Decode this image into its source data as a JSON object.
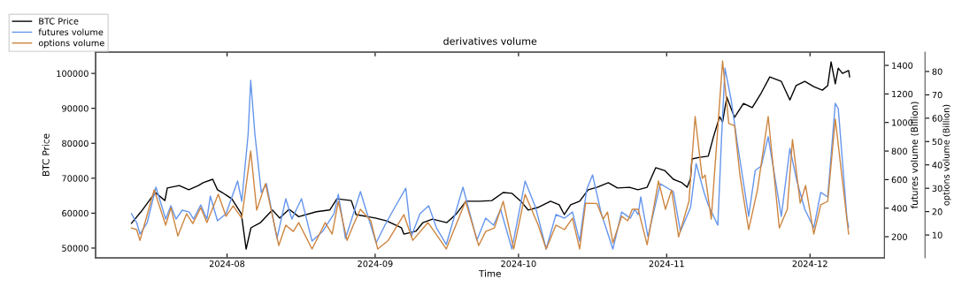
{
  "chart_data": {
    "type": "line",
    "title": "derivatives volume",
    "xlabel": "Time",
    "ylabel": "BTC Price",
    "y2label": "futures volume (Billion)",
    "y3label": "options volume (Billion)",
    "xlim": [
      "2024-07-04T12:00",
      "2024-12-16T14:00"
    ],
    "xticks": [
      {
        "value": "2024-08-01",
        "label": "2024-08"
      },
      {
        "value": "2024-09-01",
        "label": "2024-09"
      },
      {
        "value": "2024-10-01",
        "label": "2024-10"
      },
      {
        "value": "2024-11-01",
        "label": "2024-11"
      },
      {
        "value": "2024-12-01",
        "label": "2024-12"
      }
    ],
    "ylim": [
      47200,
      106100
    ],
    "yticks": [
      50000,
      60000,
      70000,
      80000,
      90000,
      100000
    ],
    "y2lim": [
      52,
      1493
    ],
    "y2ticks": [
      200,
      400,
      600,
      800,
      1000,
      1200,
      1400
    ],
    "y3lim": [
      0.2,
      88.3
    ],
    "y3ticks": [
      10,
      20,
      30,
      40,
      50,
      60,
      70,
      80
    ],
    "grid": false,
    "legend": "top left",
    "marker": "none",
    "line_style": "solid",
    "series": [
      {
        "name": "BTC Price",
        "color": "#000000",
        "axis": "y",
        "x": [
          "2024-07-12",
          "2024-07-14",
          "2024-07-16",
          "2024-07-17",
          "2024-07-19",
          "2024-07-19T12:00",
          "2024-07-22",
          "2024-07-24",
          "2024-07-26",
          "2024-07-27",
          "2024-07-29",
          "2024-07-30",
          "2024-07-31",
          "2024-08-02",
          "2024-08-04",
          "2024-08-05",
          "2024-08-06",
          "2024-08-08",
          "2024-08-10T12:00",
          "2024-08-12",
          "2024-08-14",
          "2024-08-16",
          "2024-08-19T17:00",
          "2024-08-22T12:00",
          "2024-08-24",
          "2024-08-27",
          "2024-08-28",
          "2024-09-01",
          "2024-09-03T10:00",
          "2024-09-06T12:00",
          "2024-09-07",
          "2024-09-09T12:00",
          "2024-09-11",
          "2024-09-13",
          "2024-09-16",
          "2024-09-18",
          "2024-09-20",
          "2024-09-23",
          "2024-09-25T10:00",
          "2024-09-27T19:00",
          "2024-09-29T14:00",
          "2024-10-01T12:00",
          "2024-10-03",
          "2024-10-05",
          "2024-10-07T17:00",
          "2024-10-09T12:00",
          "2024-10-10T14:00",
          "2024-10-11T22:00",
          "2024-10-13T19:00",
          "2024-10-15T14:00",
          "2024-10-17T10:00",
          "2024-10-19T19:00",
          "2024-10-21T17:00",
          "2024-10-24T05:00",
          "2024-10-26",
          "2024-10-27T22:00",
          "2024-10-29T17:00",
          "2024-10-31T14:00",
          "2024-11-02T10:00",
          "2024-11-04T05:00",
          "2024-11-05T07:00",
          "2024-11-06",
          "2024-11-06T07:00",
          "2024-11-07T22:00",
          "2024-11-09T17:00",
          "2024-11-10T19:00",
          "2024-11-12T02:00",
          "2024-11-12T17:00",
          "2024-11-13T14:00",
          "2024-11-15T05:00",
          "2024-11-17T02:00",
          "2024-11-18T22:00",
          "2024-11-20T19:00",
          "2024-11-22T14:00",
          "2024-11-25",
          "2024-11-26T19:00",
          "2024-11-28T02:00",
          "2024-11-29T22:00",
          "2024-12-01T19:00",
          "2024-12-03T14:00",
          "2024-12-04T17:00",
          "2024-12-05T10:00",
          "2024-12-06T07:00",
          "2024-12-06T22:00",
          "2024-12-07T19:00",
          "2024-12-09T02:00",
          "2024-12-09T07:00"
        ],
        "values": [
          57100,
          60400,
          64100,
          65900,
          63600,
          67200,
          67900,
          66700,
          67900,
          68700,
          69700,
          66700,
          65900,
          64100,
          59800,
          49700,
          55800,
          57300,
          60900,
          58600,
          61100,
          59000,
          60400,
          60900,
          64100,
          63600,
          59600,
          58600,
          57800,
          55800,
          54000,
          54800,
          57300,
          58300,
          57300,
          59800,
          63400,
          63400,
          63600,
          65900,
          65700,
          63400,
          60900,
          61600,
          63400,
          62400,
          59600,
          62400,
          63400,
          66700,
          67400,
          68700,
          67200,
          67400,
          66700,
          67400,
          73000,
          72200,
          69700,
          68700,
          67400,
          69900,
          75500,
          76000,
          76300,
          81800,
          87600,
          86100,
          93200,
          87400,
          91400,
          90200,
          94400,
          99000,
          97700,
          92400,
          96500,
          97700,
          96200,
          95200,
          96500,
          103300,
          97000,
          101500,
          100000,
          100800,
          99000
        ]
      },
      {
        "name": "futures volume",
        "color": "#6495ed",
        "axis": "y2",
        "x": [
          "2024-07-12",
          "2024-07-13T02:00",
          "2024-07-13T19:00",
          "2024-07-15T07:00",
          "2024-07-17T03:00",
          "2024-07-19T04:00",
          "2024-07-20T06:00",
          "2024-07-21T08:00",
          "2024-07-22T15:00",
          "2024-07-24T02:00",
          "2024-07-25",
          "2024-07-26T12:00",
          "2024-07-27T19:00",
          "2024-07-28T12:00",
          "2024-07-30",
          "2024-07-31T19:00",
          "2024-08-03T05:00",
          "2024-08-04T02:00",
          "2024-08-05T10:00",
          "2024-08-05T23:00",
          "2024-08-06T20:00",
          "2024-08-08T04:00",
          "2024-08-09T06:00",
          "2024-08-11T11:00",
          "2024-08-13T07:00",
          "2024-08-14T14:00",
          "2024-08-16T14:00",
          "2024-08-18T19:00",
          "2024-08-21",
          "2024-08-23T09:00",
          "2024-08-24T07:00",
          "2024-08-25T19:00",
          "2024-08-28T22:00",
          "2024-09-01T05:00",
          "2024-09-03T01:00",
          "2024-09-04T21:00",
          "2024-09-07T10:00",
          "2024-09-08T13:00",
          "2024-09-10T09:00",
          "2024-09-12T05:00",
          "2024-09-13T20:00",
          "2024-09-15T21:00",
          "2024-09-19T09:00",
          "2024-09-22T07:00",
          "2024-09-24T03:00",
          "2024-09-25T19:00",
          "2024-09-27T06:00",
          "2024-09-29T15:00",
          "2024-10-02T09:00",
          "2024-10-04T14:00",
          "2024-10-06T19:00",
          "2024-10-08T20:00",
          "2024-10-10T15:00",
          "2024-10-12T07:00",
          "2024-10-13T19:00",
          "2024-10-15T06:00",
          "2024-10-16T12:00",
          "2024-10-18T08:00",
          "2024-10-20T18:00",
          "2024-10-22T14:00",
          "2024-10-24T10:00",
          "2024-10-25T08:00",
          "2024-10-26T01:00",
          "2024-10-26T14:00",
          "2024-10-28T02:00",
          "2024-10-30T16:00",
          "2024-11-02T10:00",
          "2024-11-03T21:00",
          "2024-11-06",
          "2024-11-07T04:00",
          "2024-11-08T20:00",
          "2024-11-09T17:00",
          "2024-11-11T17:00",
          "2024-11-12T12:00",
          "2024-11-13T05:00",
          "2024-11-14T12:00",
          "2024-11-15T19:00",
          "2024-11-18T04:00",
          "2024-11-19T13:00",
          "2024-11-20T19:00",
          "2024-11-22T06:00",
          "2024-11-25",
          "2024-11-26T19:00",
          "2024-11-28T06:00",
          "2024-11-29T22:00",
          "2024-12-01T19:00",
          "2024-12-03T06:00",
          "2024-12-04T17:00",
          "2024-12-06T07:00",
          "2024-12-06T22:00",
          "2024-12-08T18:00",
          "2024-12-09T02:00"
        ],
        "values": [
          361,
          299,
          219,
          299,
          547,
          324,
          417,
          324,
          386,
          373,
          324,
          423,
          324,
          485,
          312,
          361,
          590,
          448,
          918,
          1295,
          918,
          510,
          571,
          188,
          466,
          324,
          466,
          169,
          237,
          361,
          497,
          188,
          516,
          157,
          281,
          392,
          540,
          200,
          361,
          417,
          262,
          145,
          547,
          176,
          330,
          281,
          392,
          114,
          590,
          404,
          114,
          355,
          330,
          373,
          169,
          528,
          633,
          361,
          114,
          373,
          330,
          392,
          355,
          479,
          200,
          571,
          516,
          237,
          404,
          713,
          510,
          423,
          281,
          900,
          1380,
          1159,
          856,
          343,
          664,
          695,
          900,
          343,
          819,
          590,
          392,
          262,
          510,
          479,
          1134,
          1097,
          324,
          268
        ]
      },
      {
        "name": "options volume",
        "color": "#cd853f",
        "axis": "y3",
        "x": [
          "2024-07-12",
          "2024-07-13T02:00",
          "2024-07-13T19:00",
          "2024-07-16T18:00",
          "2024-07-19T04:00",
          "2024-07-20T06:00",
          "2024-07-21T17:00",
          "2024-07-23T13:00",
          "2024-07-24T20:00",
          "2024-07-26T12:00",
          "2024-07-27T19:00",
          "2024-07-30T04:00",
          "2024-07-31T19:00",
          "2024-08-02T07:00",
          "2024-08-04T02:00",
          "2024-08-05T23:00",
          "2024-08-07T05:00",
          "2024-08-09T01:00",
          "2024-08-11T20:00",
          "2024-08-13T07:00",
          "2024-08-14T21:00",
          "2024-08-16",
          "2024-08-18T19:00",
          "2024-08-21T13:00",
          "2024-08-23",
          "2024-08-24T07:00",
          "2024-08-26T03:00",
          "2024-08-27T10:00",
          "2024-08-28T22:00",
          "2024-08-31T02:00",
          "2024-09-01T13:00",
          "2024-09-03T18:00",
          "2024-09-07",
          "2024-09-08T21:00",
          "2024-09-12T01:00",
          "2024-09-13T12:00",
          "2024-09-15T21:00",
          "2024-09-19T22:00",
          "2024-09-22T16:00",
          "2024-09-24T03:00",
          "2024-09-25T23:00",
          "2024-09-27T19:00",
          "2024-09-30",
          "2024-10-02T09:00",
          "2024-10-05T03:00",
          "2024-10-06T19:00",
          "2024-10-08T20:00",
          "2024-10-10T15:00",
          "2024-10-12T07:00",
          "2024-10-13T19:00",
          "2024-10-15T01:00",
          "2024-10-17T10:00",
          "2024-10-18T17:00",
          "2024-10-19T15:00",
          "2024-10-20T18:00",
          "2024-10-22T14:00",
          "2024-10-23T21:00",
          "2024-10-24T19:00",
          "2024-10-26T01:00",
          "2024-10-27T22:00",
          "2024-10-30T07:00",
          "2024-10-31T18:00",
          "2024-11-02T01:00",
          "2024-11-03T12:00",
          "2024-11-05T16:00",
          "2024-11-06T23:00",
          "2024-11-08T11:00",
          "2024-11-09T01:00",
          "2024-11-10T08:00",
          "2024-11-12T17:00",
          "2024-11-14",
          "2024-11-15T05:00",
          "2024-11-16T08:00",
          "2024-11-18T04:00",
          "2024-11-20",
          "2024-11-22T06:00",
          "2024-11-24T14:00",
          "2024-11-26T06:00",
          "2024-11-27T08:00",
          "2024-11-28T23:00",
          "2024-11-30T02:00",
          "2024-12-01T19:00",
          "2024-12-03T06:00",
          "2024-12-04T17:00",
          "2024-12-06T07:00",
          "2024-12-09T02:00"
        ],
        "values": [
          13.0,
          12.3,
          7.7,
          29.3,
          14.2,
          21.7,
          9.6,
          19.1,
          14.9,
          21.7,
          15.3,
          27.4,
          18.0,
          22.5,
          17.2,
          46.0,
          20.6,
          32.0,
          5.5,
          14.2,
          11.5,
          15.3,
          4.0,
          15.3,
          10.4,
          24.4,
          7.7,
          14.2,
          21.0,
          16.1,
          4.0,
          7.7,
          18.7,
          7.7,
          15.3,
          11.1,
          4.0,
          24.4,
          5.5,
          11.5,
          13.0,
          24.4,
          4.0,
          27.4,
          14.2,
          4.0,
          14.2,
          12.3,
          17.2,
          4.0,
          23.6,
          23.5,
          16.8,
          19.8,
          6.6,
          18.0,
          16.1,
          21.0,
          21.0,
          5.8,
          33.1,
          21.0,
          29.3,
          9.2,
          24.4,
          60.7,
          34.2,
          35.7,
          16.8,
          84.5,
          57.7,
          56.9,
          35.7,
          12.3,
          29.3,
          60.7,
          13.0,
          21.0,
          50.9,
          23.6,
          31.2,
          10.4,
          22.9,
          24.4,
          59.6,
          10.4
        ]
      }
    ]
  }
}
